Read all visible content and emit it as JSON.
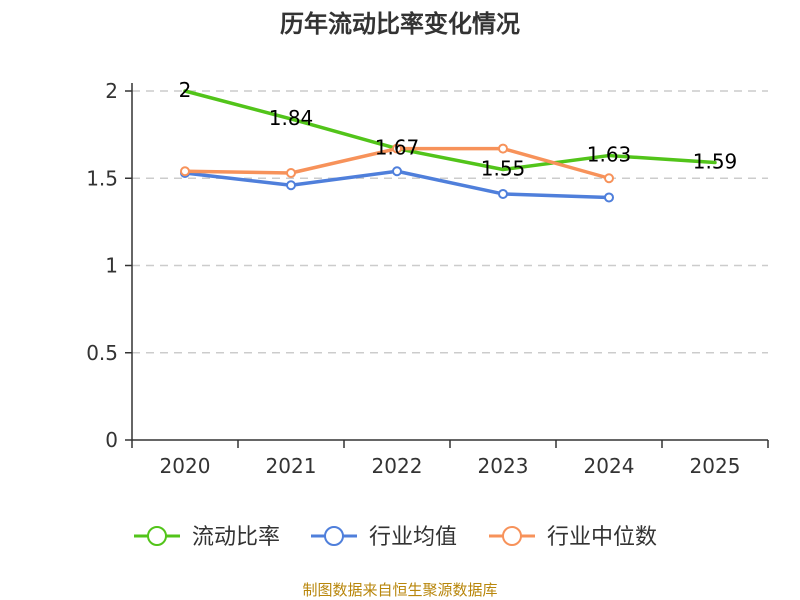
{
  "chart_data": {
    "type": "line",
    "title": "历年流动比率变化情况",
    "categories": [
      "2020",
      "2021",
      "2022",
      "2023",
      "2024",
      "2025"
    ],
    "ylim": [
      0,
      2
    ],
    "yticks": [
      0,
      0.5,
      1,
      1.5,
      2
    ],
    "ytick_labels": [
      "0",
      "0.5",
      "1",
      "1.5",
      "2"
    ],
    "grid": true,
    "legend_position": "bottom",
    "series": [
      {
        "name": "流动比率",
        "color": "#52c41a",
        "values": [
          2,
          1.84,
          1.67,
          1.55,
          1.63,
          1.59
        ],
        "labels": [
          "2",
          "1.84",
          "1.67",
          "1.55",
          "1.63",
          "1.59"
        ],
        "markers": false
      },
      {
        "name": "行业均值",
        "color": "#4f7fdb",
        "values": [
          1.53,
          1.46,
          1.54,
          1.41,
          1.39,
          null
        ],
        "markers": true
      },
      {
        "name": "行业中位数",
        "color": "#f7925a",
        "values": [
          1.54,
          1.53,
          1.67,
          1.67,
          1.5,
          null
        ],
        "markers": true
      }
    ]
  },
  "footer": {
    "source": "制图数据来自恒生聚源数据库"
  }
}
